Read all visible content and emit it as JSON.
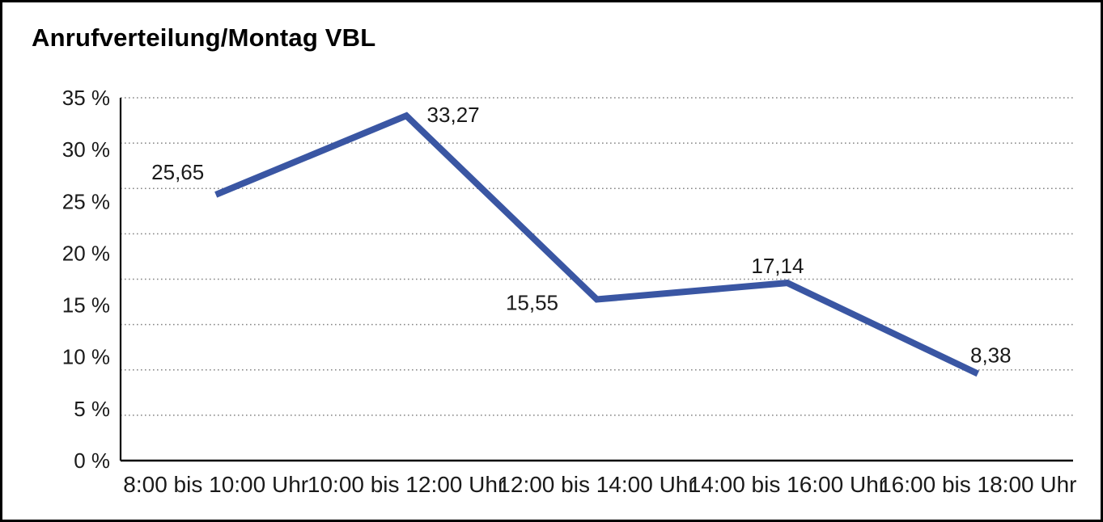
{
  "chart_data": {
    "type": "line",
    "title": "Anrufverteilung/Montag VBL",
    "categories": [
      "8:00 bis 10:00 Uhr",
      "10:00 bis 12:00 Uhr",
      "12:00 bis 14:00 Uhr",
      "14:00 bis 16:00 Uhr",
      "16:00 bis 18:00 Uhr"
    ],
    "values": [
      25.65,
      33.27,
      15.55,
      17.14,
      8.38
    ],
    "value_labels": [
      "25,65",
      "33,27",
      "15,55",
      "17,14",
      "8,38"
    ],
    "ytick_labels": [
      "35 %",
      "30 %",
      "25 %",
      "20 %",
      "15 %",
      "10 %",
      "5 %",
      "0 %"
    ],
    "ylim": [
      0,
      35
    ],
    "ytick_step": 5,
    "grid": "horizontal-dotted",
    "grid_intervals": 8,
    "legend": "none",
    "line_color": "#3A56A3",
    "gridline_color": "#858585",
    "axis_color": "#000000",
    "text_color": "#1a1a1a"
  }
}
